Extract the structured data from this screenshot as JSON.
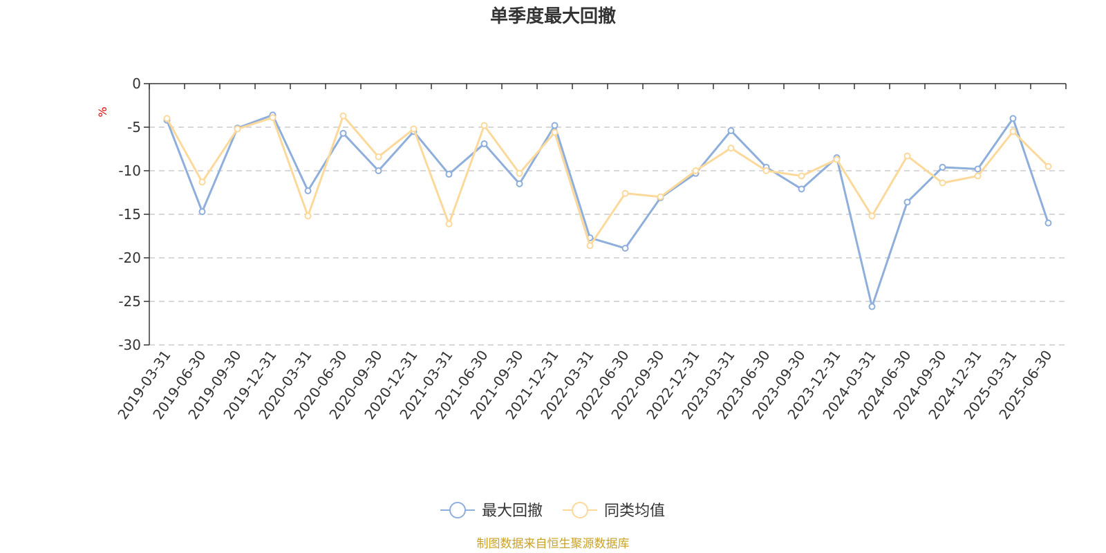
{
  "chart_data": {
    "type": "line",
    "title": "单季度最大回撤",
    "unit_label": "%",
    "ylim": [
      -30,
      0
    ],
    "yticks": [
      0,
      -5,
      -10,
      -15,
      -20,
      -25,
      -30
    ],
    "grid": true,
    "legend_position": "bottom-center",
    "categories": [
      "2019-03-31",
      "2019-06-30",
      "2019-09-30",
      "2019-12-31",
      "2020-03-31",
      "2020-06-30",
      "2020-09-30",
      "2020-12-31",
      "2021-03-31",
      "2021-06-30",
      "2021-09-30",
      "2021-12-31",
      "2022-03-31",
      "2022-06-30",
      "2022-09-30",
      "2022-12-31",
      "2023-03-31",
      "2023-06-30",
      "2023-09-30",
      "2023-12-31",
      "2024-03-31",
      "2024-06-30",
      "2024-09-30",
      "2024-12-31",
      "2025-03-31",
      "2025-06-30"
    ],
    "series": [
      {
        "name": "最大回撤",
        "color": "#8eaedb",
        "values": [
          -4.2,
          -14.7,
          -5.1,
          -3.6,
          -12.3,
          -5.7,
          -10.0,
          -5.5,
          -10.4,
          -6.9,
          -11.5,
          -4.8,
          -17.7,
          -18.9,
          -13.1,
          -10.3,
          -5.4,
          -9.6,
          -12.1,
          -8.5,
          -25.6,
          -13.6,
          -9.6,
          -9.8,
          -4.0,
          -16.0
        ]
      },
      {
        "name": "同类均值",
        "color": "#fcd99b",
        "values": [
          -4.0,
          -11.3,
          -5.2,
          -3.9,
          -15.2,
          -3.7,
          -8.4,
          -5.2,
          -16.1,
          -4.8,
          -10.3,
          -5.6,
          -18.6,
          -12.6,
          -13.0,
          -10.0,
          -7.4,
          -10.0,
          -10.6,
          -8.7,
          -15.2,
          -8.3,
          -11.4,
          -10.6,
          -5.5,
          -9.5
        ]
      }
    ],
    "source_note": "制图数据来自恒生聚源数据库"
  }
}
